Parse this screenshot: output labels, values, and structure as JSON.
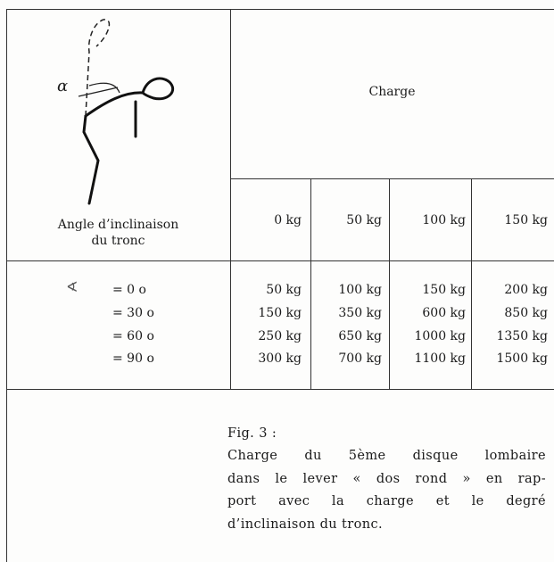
{
  "figure": {
    "angle_label": "α"
  },
  "table": {
    "group_header": "Charge",
    "row_header": [
      "Angle d’inclinaison",
      "du tronc"
    ],
    "columns": [
      "0 kg",
      "50 kg",
      "100 kg",
      "150 kg"
    ],
    "angle_symbol": "∢",
    "rows": [
      [
        "= 0 o",
        "50 kg",
        "100 kg",
        "150 kg",
        "200 kg"
      ],
      [
        "= 30 o",
        "150 kg",
        "350 kg",
        "600 kg",
        "850 kg"
      ],
      [
        "= 60 o",
        "250 kg",
        "650 kg",
        "1000 kg",
        "1350 kg"
      ],
      [
        "= 90 o",
        "300 kg",
        "700 kg",
        "1100 kg",
        "1500 kg"
      ]
    ]
  },
  "caption": {
    "label": "Fig. 3 :",
    "lines": [
      "Charge du 5ème disque lombaire",
      "dans le lever « dos rond » en rap-",
      "port avec la charge et le degré",
      "d’inclinaison du tronc."
    ]
  }
}
